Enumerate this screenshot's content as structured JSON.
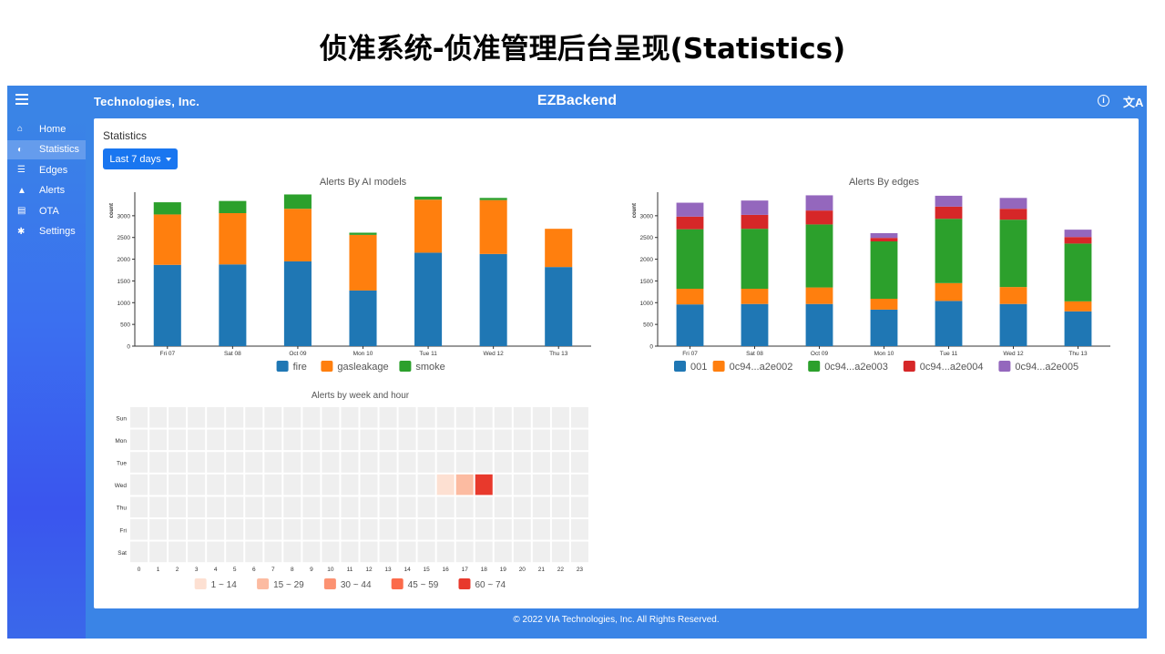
{
  "slide": {
    "title": "侦准系统-侦准管理后台呈现(Statistics)"
  },
  "topbar": {
    "brand": "Technologies, Inc.",
    "app_title": "EZBackend",
    "info_icon": "info-icon",
    "translate_icon": "translate-icon",
    "translate_glyph": "文A"
  },
  "sidebar": {
    "items": [
      {
        "label": "Home",
        "icon": "home-icon",
        "glyph": "⌂",
        "active": false
      },
      {
        "label": "Statistics",
        "icon": "chart-icon",
        "glyph": "◐",
        "active": true
      },
      {
        "label": "Edges",
        "icon": "server-icon",
        "glyph": "☰",
        "active": false
      },
      {
        "label": "Alerts",
        "icon": "bell-icon",
        "glyph": "▲",
        "active": false
      },
      {
        "label": "OTA",
        "icon": "file-icon",
        "glyph": "▤",
        "active": false
      },
      {
        "label": "Settings",
        "icon": "gear-icon",
        "glyph": "✱",
        "active": false
      }
    ]
  },
  "main": {
    "title": "Statistics",
    "range_button": "Last 7 days"
  },
  "footer": {
    "text": "© 2022 VIA Technologies, Inc. All Rights Reserved."
  },
  "colors": {
    "blue": "#1f77b4",
    "orange": "#ff7f0e",
    "green": "#2ca02c",
    "red": "#d62728",
    "purple": "#9467bd",
    "app_bg": "#3a84e6"
  },
  "chart_data": [
    {
      "type": "bar",
      "stacked": true,
      "title": "Alerts By AI models",
      "ylabel": "count",
      "categories": [
        "Fri 07",
        "Sat 08",
        "Oct 09",
        "Mon 10",
        "Tue 11",
        "Wed 12",
        "Thu 13"
      ],
      "ylim": [
        0,
        3500
      ],
      "yticks": [
        0,
        500,
        1000,
        1500,
        2000,
        2500,
        3000
      ],
      "series": [
        {
          "name": "fire",
          "color": "#1f77b4",
          "values": [
            1870,
            1880,
            1950,
            1280,
            2150,
            2120,
            1820
          ]
        },
        {
          "name": "gasleakage",
          "color": "#ff7f0e",
          "values": [
            1160,
            1180,
            1210,
            1280,
            1220,
            1240,
            880
          ]
        },
        {
          "name": "smoke",
          "color": "#2ca02c",
          "values": [
            280,
            280,
            330,
            50,
            70,
            50,
            0
          ]
        }
      ]
    },
    {
      "type": "bar",
      "stacked": true,
      "title": "Alerts By edges",
      "ylabel": "count",
      "categories": [
        "Fri 07",
        "Sat 08",
        "Oct 09",
        "Mon 10",
        "Tue 11",
        "Wed 12",
        "Thu 13"
      ],
      "ylim": [
        0,
        3500
      ],
      "yticks": [
        0,
        500,
        1000,
        1500,
        2000,
        2500,
        3000
      ],
      "series": [
        {
          "name": "001",
          "color": "#1f77b4",
          "values": [
            960,
            970,
            970,
            840,
            1040,
            970,
            800
          ]
        },
        {
          "name": "0c94...a2e002",
          "color": "#ff7f0e",
          "values": [
            360,
            350,
            380,
            250,
            410,
            390,
            230
          ]
        },
        {
          "name": "0c94...a2e003",
          "color": "#2ca02c",
          "values": [
            1370,
            1380,
            1450,
            1320,
            1480,
            1550,
            1330
          ]
        },
        {
          "name": "0c94...a2e004",
          "color": "#d62728",
          "values": [
            290,
            320,
            320,
            80,
            280,
            250,
            150
          ]
        },
        {
          "name": "0c94...a2e005",
          "color": "#9467bd",
          "values": [
            320,
            330,
            350,
            110,
            250,
            250,
            170
          ]
        }
      ]
    },
    {
      "type": "heatmap",
      "title": "Alerts by week and hour",
      "rows": [
        "Sun",
        "Mon",
        "Tue",
        "Wed",
        "Thu",
        "Fri",
        "Sat"
      ],
      "columns": [
        "0",
        "1",
        "2",
        "3",
        "4",
        "5",
        "6",
        "7",
        "8",
        "9",
        "10",
        "11",
        "12",
        "13",
        "14",
        "15",
        "16",
        "17",
        "18",
        "19",
        "20",
        "21",
        "22",
        "23"
      ],
      "cells": [
        {
          "row": "Wed",
          "column": "16",
          "bin": "1 ~ 14"
        },
        {
          "row": "Wed",
          "column": "17",
          "bin": "15 ~ 29"
        },
        {
          "row": "Wed",
          "column": "18",
          "bin": "60 ~ 74"
        }
      ],
      "legend": [
        {
          "label": "1 ~ 14",
          "color": "#fde0d2"
        },
        {
          "label": "15 ~ 29",
          "color": "#fcbba1"
        },
        {
          "label": "30 ~ 44",
          "color": "#fc9272"
        },
        {
          "label": "45 ~ 59",
          "color": "#fb6a4a"
        },
        {
          "label": "60 ~ 74",
          "color": "#e8392c"
        }
      ],
      "empty_color": "#efefef"
    }
  ]
}
